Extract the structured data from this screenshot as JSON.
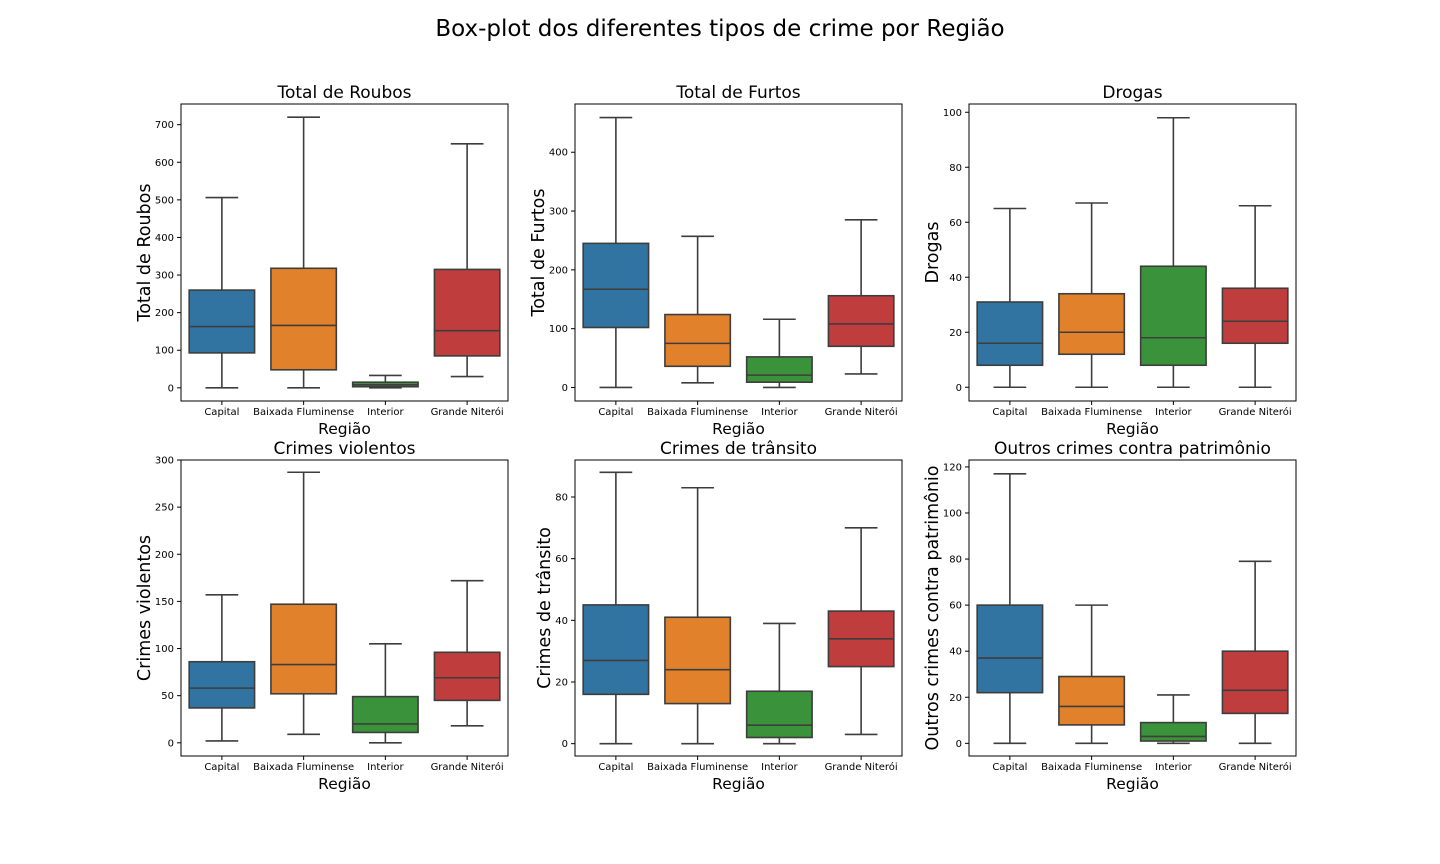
{
  "suptitle": "Box-plot dos diferentes tipos de crime por Região",
  "colors": {
    "Capital": "#3274a1",
    "Baixada Fluminense": "#e1812c",
    "Interior": "#3a923a",
    "Grande Niterói": "#c03d3e",
    "line": "#3d3d3d",
    "axes": "#000000"
  },
  "chart_data": [
    {
      "type": "box",
      "title": "Total de Roubos",
      "xlabel": "Região",
      "ylabel": "Total de Roubos",
      "categories": [
        "Capital",
        "Baixada Fluminense",
        "Interior",
        "Grande Niterói"
      ],
      "yticks": [
        0,
        100,
        200,
        300,
        400,
        500,
        600,
        700
      ],
      "ylim": [
        -35,
        755
      ],
      "boxes": [
        {
          "whislo": 0,
          "q1": 93,
          "med": 163,
          "q3": 260,
          "whishi": 506
        },
        {
          "whislo": 0,
          "q1": 48,
          "med": 166,
          "q3": 318,
          "whishi": 720
        },
        {
          "whislo": 0,
          "q1": 3,
          "med": 8,
          "q3": 15,
          "whishi": 33
        },
        {
          "whislo": 30,
          "q1": 85,
          "med": 152,
          "q3": 315,
          "whishi": 649
        }
      ]
    },
    {
      "type": "box",
      "title": "Total de Furtos",
      "xlabel": "Região",
      "ylabel": "Total de Furtos",
      "categories": [
        "Capital",
        "Baixada Fluminense",
        "Interior",
        "Grande Niterói"
      ],
      "yticks": [
        0,
        100,
        200,
        300,
        400
      ],
      "ylim": [
        -23,
        482
      ],
      "boxes": [
        {
          "whislo": 0,
          "q1": 102,
          "med": 167,
          "q3": 245,
          "whishi": 459
        },
        {
          "whislo": 8,
          "q1": 36,
          "med": 75,
          "q3": 124,
          "whishi": 257
        },
        {
          "whislo": 0,
          "q1": 9,
          "med": 21,
          "q3": 52,
          "whishi": 116
        },
        {
          "whislo": 23,
          "q1": 70,
          "med": 108,
          "q3": 156,
          "whishi": 285
        }
      ]
    },
    {
      "type": "box",
      "title": "Drogas",
      "xlabel": "Região",
      "ylabel": "Drogas",
      "categories": [
        "Capital",
        "Baixada Fluminense",
        "Interior",
        "Grande Niterói"
      ],
      "yticks": [
        0,
        20,
        40,
        60,
        80,
        100
      ],
      "ylim": [
        -5,
        103
      ],
      "boxes": [
        {
          "whislo": 0,
          "q1": 8,
          "med": 16,
          "q3": 31,
          "whishi": 65
        },
        {
          "whislo": 0,
          "q1": 12,
          "med": 20,
          "q3": 34,
          "whishi": 67
        },
        {
          "whislo": 0,
          "q1": 8,
          "med": 18,
          "q3": 44,
          "whishi": 98
        },
        {
          "whislo": 0,
          "q1": 16,
          "med": 24,
          "q3": 36,
          "whishi": 66
        }
      ]
    },
    {
      "type": "box",
      "title": "Crimes violentos",
      "xlabel": "Região",
      "ylabel": "Crimes violentos",
      "categories": [
        "Capital",
        "Baixada Fluminense",
        "Interior",
        "Grande Niterói"
      ],
      "yticks": [
        0,
        50,
        100,
        150,
        200,
        250,
        300
      ],
      "ylim": [
        -14,
        300
      ],
      "boxes": [
        {
          "whislo": 2,
          "q1": 37,
          "med": 58,
          "q3": 86,
          "whishi": 157
        },
        {
          "whislo": 9,
          "q1": 52,
          "med": 83,
          "q3": 147,
          "whishi": 287
        },
        {
          "whislo": 0,
          "q1": 11,
          "med": 20,
          "q3": 49,
          "whishi": 105
        },
        {
          "whislo": 18,
          "q1": 45,
          "med": 69,
          "q3": 96,
          "whishi": 172
        }
      ]
    },
    {
      "type": "box",
      "title": "Crimes de trânsito",
      "xlabel": "Região",
      "ylabel": "Crimes de trânsito",
      "categories": [
        "Capital",
        "Baixada Fluminense",
        "Interior",
        "Grande Niterói"
      ],
      "yticks": [
        0,
        20,
        40,
        60,
        80
      ],
      "ylim": [
        -4,
        92
      ],
      "boxes": [
        {
          "whislo": 0,
          "q1": 16,
          "med": 27,
          "q3": 45,
          "whishi": 88
        },
        {
          "whislo": 0,
          "q1": 13,
          "med": 24,
          "q3": 41,
          "whishi": 83
        },
        {
          "whislo": 0,
          "q1": 2,
          "med": 6,
          "q3": 17,
          "whishi": 39
        },
        {
          "whislo": 3,
          "q1": 25,
          "med": 34,
          "q3": 43,
          "whishi": 70
        }
      ]
    },
    {
      "type": "box",
      "title": "Outros crimes contra patrimônio",
      "xlabel": "Região",
      "ylabel": "Outros crimes contra patrimônio",
      "categories": [
        "Capital",
        "Baixada Fluminense",
        "Interior",
        "Grande Niterói"
      ],
      "yticks": [
        0,
        20,
        40,
        60,
        80,
        100,
        120
      ],
      "ylim": [
        -5.5,
        123
      ],
      "boxes": [
        {
          "whislo": 0,
          "q1": 22,
          "med": 37,
          "q3": 60,
          "whishi": 117
        },
        {
          "whislo": 0,
          "q1": 8,
          "med": 16,
          "q3": 29,
          "whishi": 60
        },
        {
          "whislo": 0,
          "q1": 1,
          "med": 3,
          "q3": 9,
          "whishi": 21
        },
        {
          "whislo": 0,
          "q1": 13,
          "med": 23,
          "q3": 40,
          "whishi": 79
        }
      ]
    }
  ]
}
